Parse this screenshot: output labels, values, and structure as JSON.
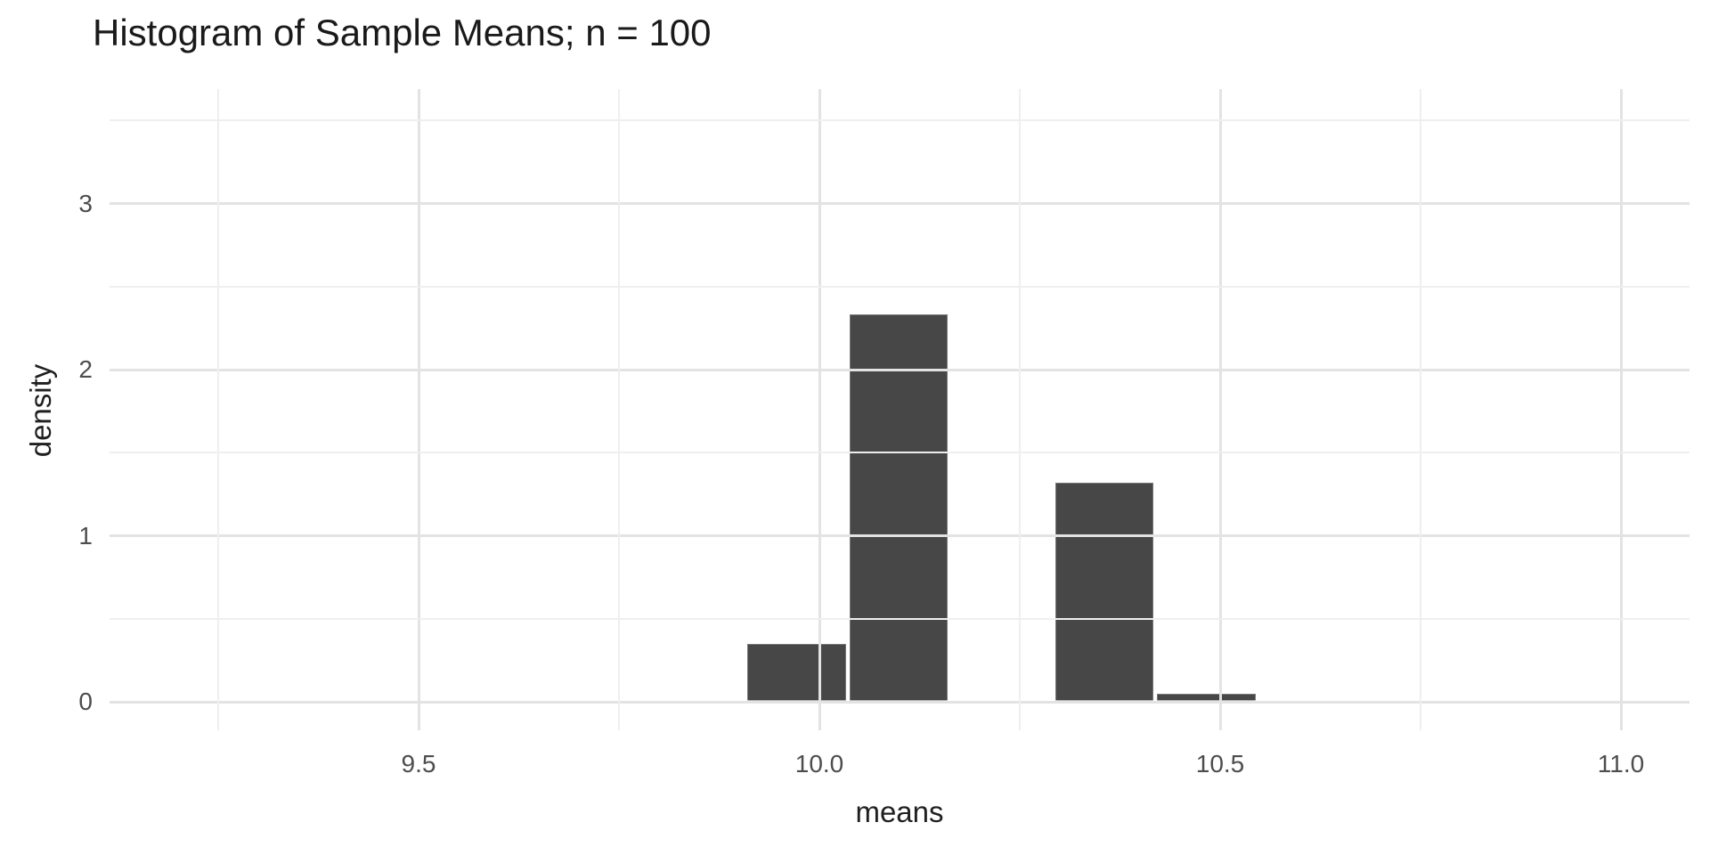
{
  "title": "Histogram of Sample Means; n = 100",
  "chart_data": {
    "type": "bar",
    "subtype": "histogram",
    "title": "Histogram of Sample Means; n = 100",
    "xlabel": "means",
    "ylabel": "density",
    "x_ticks": [
      9.5,
      10.0,
      10.5,
      11.0
    ],
    "x_tick_labels": [
      "9.5",
      "10.0",
      "10.5",
      "11.0"
    ],
    "x_minor_ticks": [
      9.25,
      9.75,
      10.25,
      10.75
    ],
    "y_ticks": [
      0,
      1,
      2,
      3
    ],
    "y_tick_labels": [
      "0",
      "1",
      "2",
      "3"
    ],
    "y_minor_ticks": [
      0.5,
      1.5,
      2.5,
      3.5
    ],
    "xlim": [
      9.11,
      11.09
    ],
    "ylim": [
      0,
      3.69
    ],
    "grid": "major+minor",
    "legend_position": "none",
    "bar_color": "#474747",
    "bins": [
      {
        "x0": 9.91,
        "x1": 10.033,
        "density": 0.35
      },
      {
        "x0": 10.038,
        "x1": 10.16,
        "density": 2.33
      },
      {
        "x0": 10.166,
        "x1": 10.288,
        "density": 0.0
      },
      {
        "x0": 10.294,
        "x1": 10.417,
        "density": 1.32
      },
      {
        "x0": 10.421,
        "x1": 10.545,
        "density": 0.05
      }
    ]
  },
  "colors": {
    "bar_fill": "#474747",
    "grid_major": "#e3e3e3",
    "grid_minor": "#efefef",
    "tick_label": "#4d4d4d",
    "axis_title": "#1f1f1f",
    "plot_title": "#1a1a1a",
    "background": "#ffffff"
  }
}
